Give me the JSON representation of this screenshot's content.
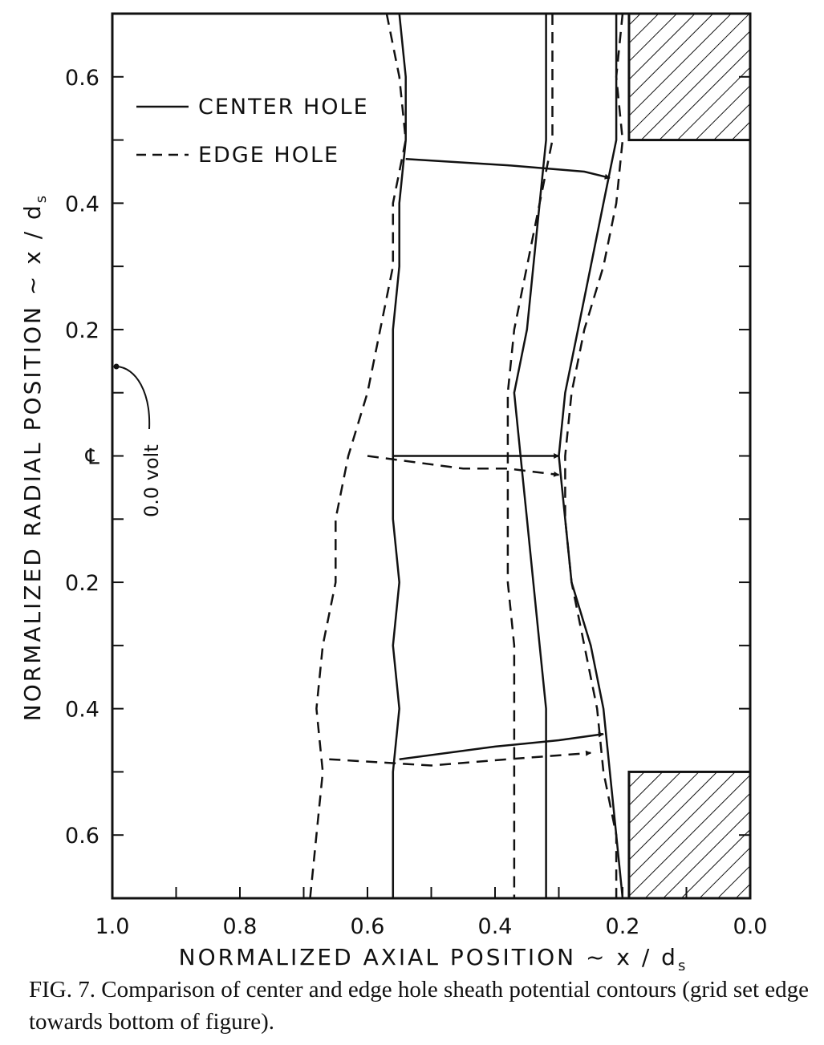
{
  "chart_data": {
    "type": "line",
    "xlabel": "NORMALIZED AXIAL POSITION ~ x / d",
    "xlabel_sub": "s",
    "ylabel": "NORMALIZED RADIAL POSITION ~ x / d",
    "ylabel_sub": "s",
    "xlim": [
      1.0,
      0.0
    ],
    "x_reversed": true,
    "ylim": [
      -0.7,
      0.7
    ],
    "x_ticks": [
      "1.0",
      "0.8",
      "0.6",
      "0.4",
      "0.2",
      "0.0"
    ],
    "y_ticks": [
      {
        "value": 0.6,
        "label": "0.6"
      },
      {
        "value": 0.4,
        "label": "0.4"
      },
      {
        "value": 0.2,
        "label": "0.2"
      },
      {
        "value": 0.0,
        "label": "℄"
      },
      {
        "value": -0.2,
        "label": "0.2"
      },
      {
        "value": -0.4,
        "label": "0.4"
      },
      {
        "value": -0.6,
        "label": "0.6"
      }
    ],
    "legend": {
      "placement": "top-left",
      "entries": [
        {
          "label": "CENTER HOLE",
          "style": "solid"
        },
        {
          "label": "EDGE HOLE",
          "style": "dashed"
        }
      ]
    },
    "annotations": [
      {
        "text": "0.0 volt",
        "x": 0.99,
        "y": 0.14
      }
    ],
    "grid_plates": [
      {
        "x0": 0.19,
        "x1": 0.0,
        "y0": 0.5,
        "y1": 0.7
      },
      {
        "x0": 0.19,
        "x1": 0.0,
        "y0": -0.7,
        "y1": -0.5
      }
    ],
    "series": [
      {
        "style": "solid",
        "points": [
          [
            0.55,
            0.7
          ],
          [
            0.54,
            0.6
          ],
          [
            0.54,
            0.5
          ],
          [
            0.55,
            0.4
          ],
          [
            0.55,
            0.3
          ],
          [
            0.56,
            0.2
          ],
          [
            0.56,
            0.1
          ],
          [
            0.56,
            0.0
          ],
          [
            0.56,
            -0.1
          ],
          [
            0.55,
            -0.2
          ],
          [
            0.56,
            -0.3
          ],
          [
            0.55,
            -0.4
          ],
          [
            0.56,
            -0.5
          ],
          [
            0.56,
            -0.6
          ],
          [
            0.56,
            -0.7
          ]
        ]
      },
      {
        "style": "solid",
        "points": [
          [
            0.32,
            0.7
          ],
          [
            0.32,
            0.6
          ],
          [
            0.32,
            0.5
          ],
          [
            0.33,
            0.4
          ],
          [
            0.34,
            0.3
          ],
          [
            0.35,
            0.2
          ],
          [
            0.37,
            0.1
          ],
          [
            0.36,
            0.0
          ],
          [
            0.35,
            -0.1
          ],
          [
            0.34,
            -0.2
          ],
          [
            0.33,
            -0.3
          ],
          [
            0.32,
            -0.4
          ],
          [
            0.32,
            -0.5
          ],
          [
            0.32,
            -0.6
          ],
          [
            0.32,
            -0.7
          ]
        ]
      },
      {
        "style": "solid",
        "points": [
          [
            0.21,
            0.7
          ],
          [
            0.21,
            0.6
          ],
          [
            0.21,
            0.5
          ],
          [
            0.23,
            0.4
          ],
          [
            0.25,
            0.3
          ],
          [
            0.27,
            0.2
          ],
          [
            0.29,
            0.1
          ],
          [
            0.3,
            0.0
          ],
          [
            0.29,
            -0.1
          ],
          [
            0.28,
            -0.2
          ],
          [
            0.25,
            -0.3
          ],
          [
            0.23,
            -0.4
          ],
          [
            0.22,
            -0.5
          ],
          [
            0.21,
            -0.6
          ],
          [
            0.2,
            -0.7
          ]
        ]
      },
      {
        "style": "dashed",
        "points": [
          [
            0.57,
            0.7
          ],
          [
            0.55,
            0.6
          ],
          [
            0.54,
            0.5
          ],
          [
            0.56,
            0.4
          ],
          [
            0.56,
            0.3
          ],
          [
            0.58,
            0.2
          ],
          [
            0.6,
            0.1
          ],
          [
            0.63,
            0.0
          ],
          [
            0.65,
            -0.1
          ],
          [
            0.65,
            -0.2
          ],
          [
            0.67,
            -0.3
          ],
          [
            0.68,
            -0.4
          ],
          [
            0.67,
            -0.5
          ],
          [
            0.68,
            -0.6
          ],
          [
            0.69,
            -0.7
          ]
        ]
      },
      {
        "style": "dashed",
        "points": [
          [
            0.31,
            0.7
          ],
          [
            0.31,
            0.6
          ],
          [
            0.31,
            0.5
          ],
          [
            0.33,
            0.4
          ],
          [
            0.35,
            0.3
          ],
          [
            0.37,
            0.2
          ],
          [
            0.38,
            0.1
          ],
          [
            0.38,
            0.0
          ],
          [
            0.38,
            -0.1
          ],
          [
            0.38,
            -0.2
          ],
          [
            0.37,
            -0.3
          ],
          [
            0.37,
            -0.4
          ],
          [
            0.37,
            -0.5
          ],
          [
            0.37,
            -0.6
          ],
          [
            0.37,
            -0.7
          ]
        ]
      },
      {
        "style": "dashed",
        "points": [
          [
            0.2,
            0.7
          ],
          [
            0.21,
            0.6
          ],
          [
            0.2,
            0.5
          ],
          [
            0.21,
            0.4
          ],
          [
            0.23,
            0.3
          ],
          [
            0.26,
            0.2
          ],
          [
            0.28,
            0.1
          ],
          [
            0.29,
            0.0
          ],
          [
            0.29,
            -0.1
          ],
          [
            0.28,
            -0.2
          ],
          [
            0.26,
            -0.3
          ],
          [
            0.24,
            -0.4
          ],
          [
            0.23,
            -0.5
          ],
          [
            0.21,
            -0.6
          ],
          [
            0.21,
            -0.7
          ]
        ]
      }
    ],
    "trajectories": [
      {
        "style": "solid",
        "points": [
          [
            0.54,
            0.47
          ],
          [
            0.38,
            0.46
          ],
          [
            0.26,
            0.45
          ],
          [
            0.22,
            0.44
          ]
        ]
      },
      {
        "style": "solid",
        "points": [
          [
            0.56,
            0.0
          ],
          [
            0.4,
            0.0
          ],
          [
            0.3,
            0.0
          ]
        ]
      },
      {
        "style": "dashed",
        "points": [
          [
            0.6,
            0.0
          ],
          [
            0.45,
            -0.02
          ],
          [
            0.38,
            -0.02
          ],
          [
            0.3,
            -0.03
          ]
        ]
      },
      {
        "style": "solid",
        "points": [
          [
            0.55,
            -0.48
          ],
          [
            0.4,
            -0.46
          ],
          [
            0.3,
            -0.45
          ],
          [
            0.23,
            -0.44
          ]
        ]
      },
      {
        "style": "dashed",
        "points": [
          [
            0.66,
            -0.48
          ],
          [
            0.5,
            -0.49
          ],
          [
            0.38,
            -0.48
          ],
          [
            0.25,
            -0.47
          ]
        ]
      }
    ]
  },
  "caption": "FIG. 7. Comparison of center and edge hole sheath potential contours (grid set edge towards bottom of figure)."
}
